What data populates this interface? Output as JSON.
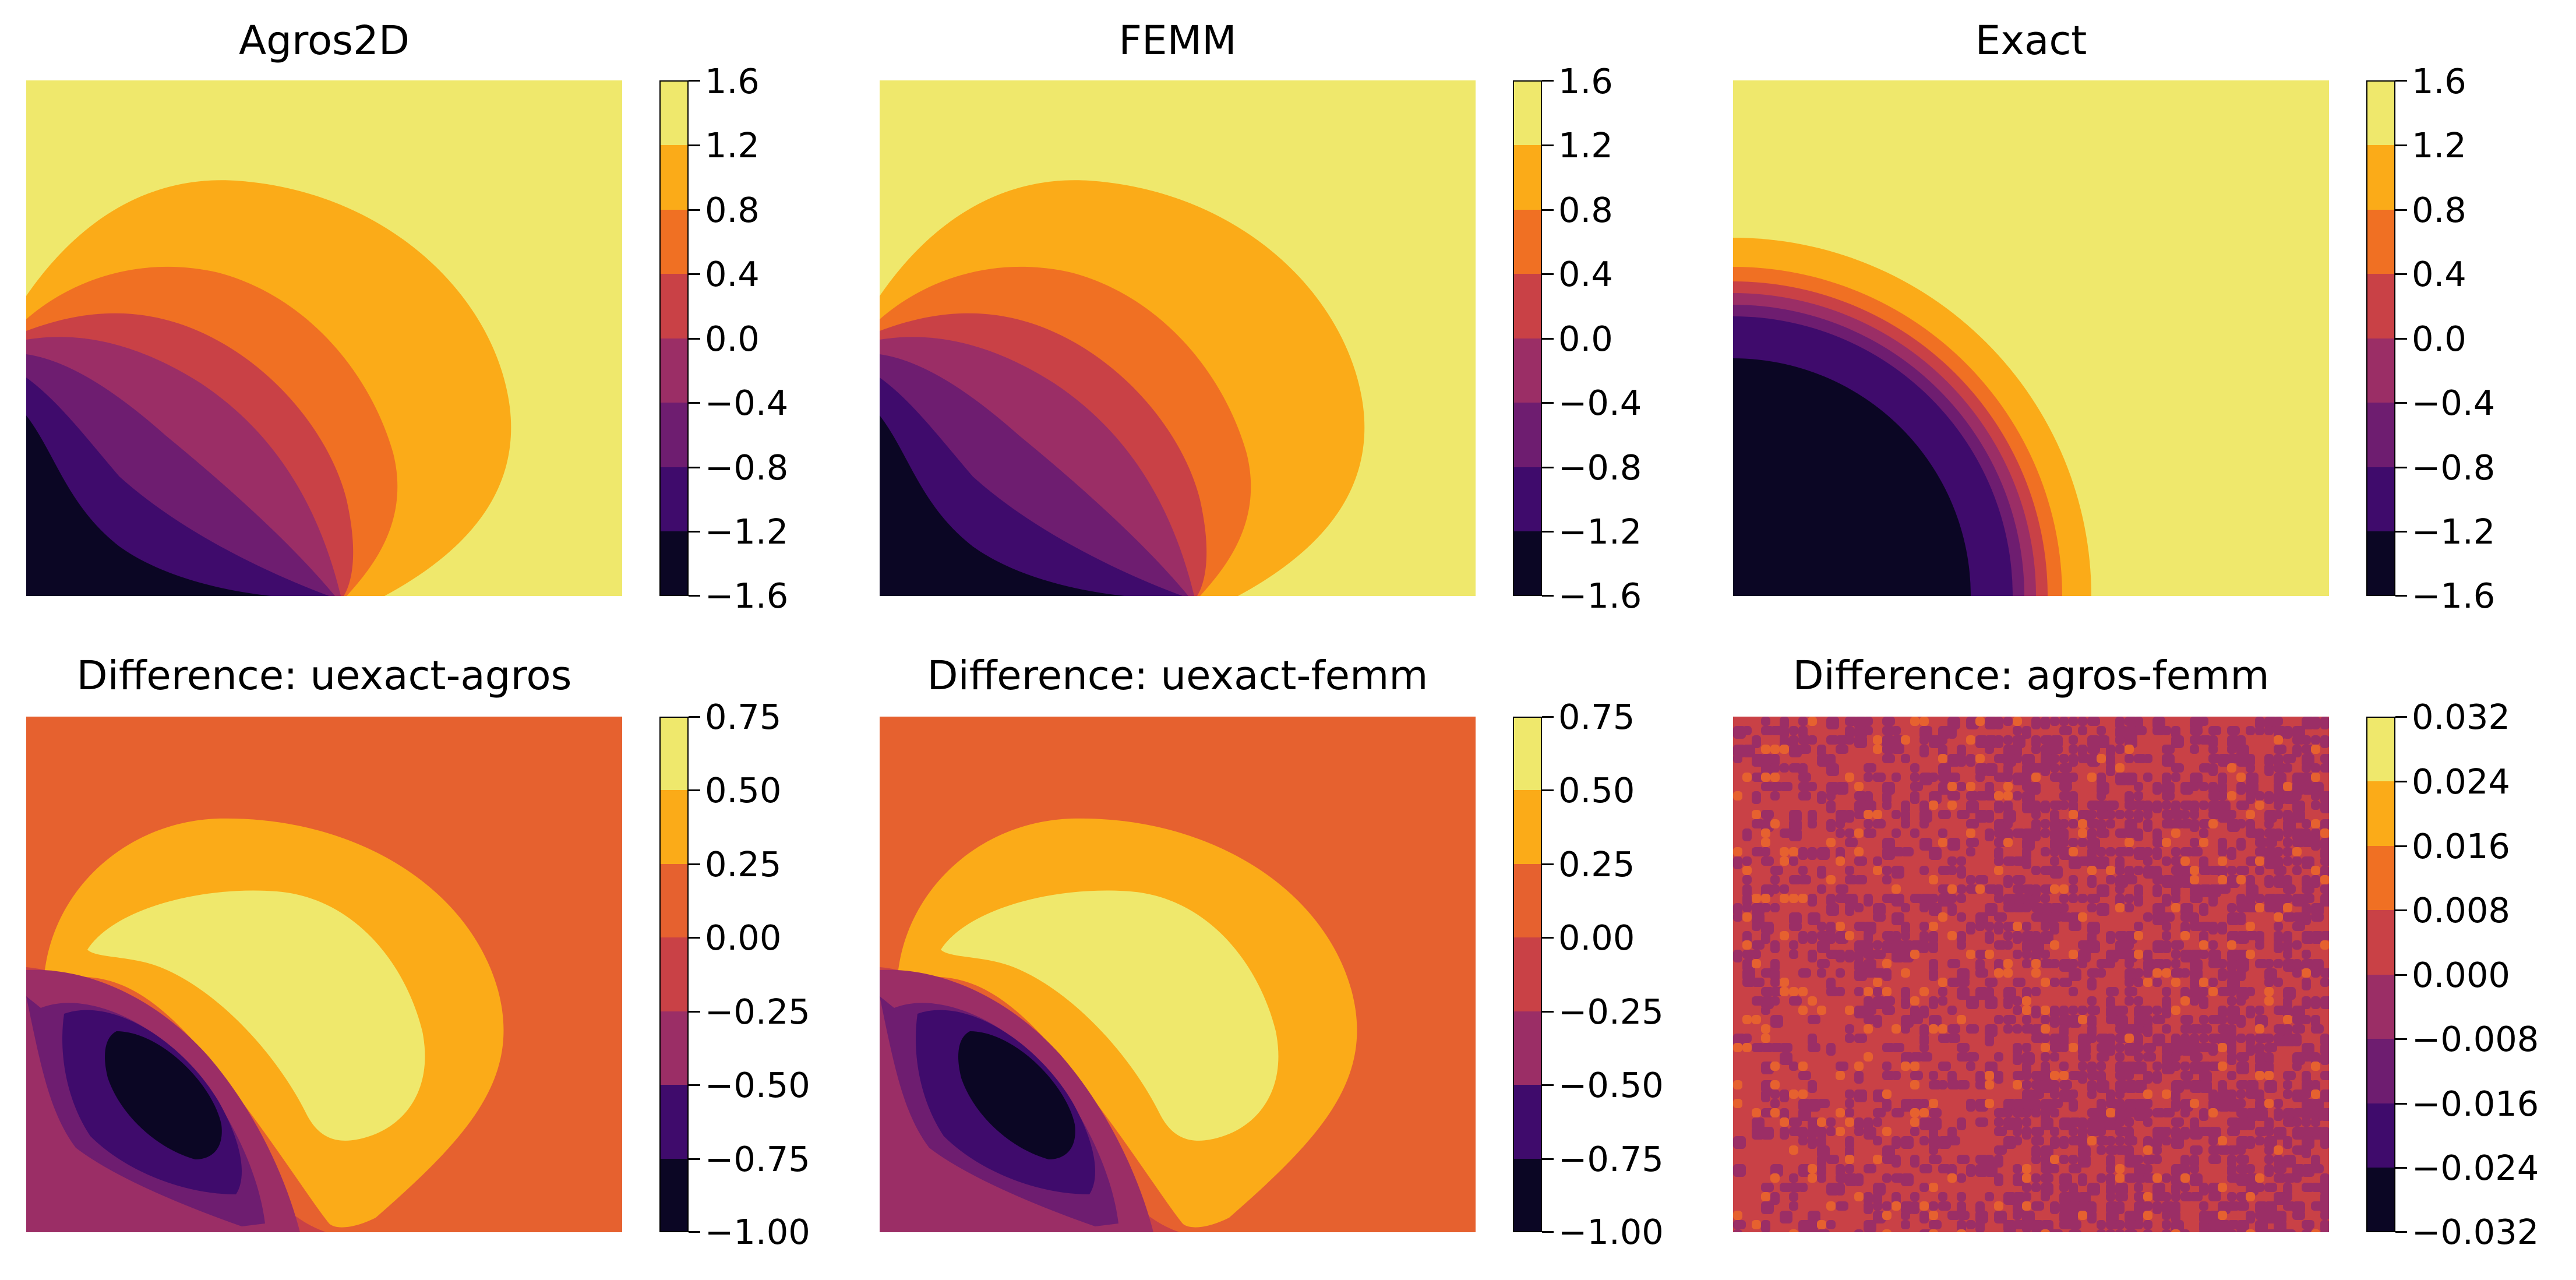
{
  "colors": {
    "c8": [
      "#0b0624",
      "#3f0b6c",
      "#6e1d70",
      "#9b2e66",
      "#c94146",
      "#f07023",
      "#fbab18",
      "#efe86c"
    ],
    "diff_bg": "#e6612f",
    "diff_noise_a": "#9b2e66",
    "diff_noise_b": "#d0463f"
  },
  "panels": [
    {
      "id": "agros2d",
      "title": "Agros2D",
      "colorbar_ticks": [
        "1.6",
        "1.2",
        "0.8",
        "0.4",
        "0.0",
        "−0.4",
        "−0.8",
        "−1.2",
        "−1.6"
      ]
    },
    {
      "id": "femm",
      "title": "FEMM",
      "colorbar_ticks": [
        "1.6",
        "1.2",
        "0.8",
        "0.4",
        "0.0",
        "−0.4",
        "−0.8",
        "−1.2",
        "−1.6"
      ]
    },
    {
      "id": "exact",
      "title": "Exact",
      "colorbar_ticks": [
        "1.6",
        "1.2",
        "0.8",
        "0.4",
        "0.0",
        "−0.4",
        "−0.8",
        "−1.2",
        "−1.6"
      ]
    },
    {
      "id": "diff-uexact-agros",
      "title": "Difference: uexact-agros",
      "colorbar_ticks": [
        "0.75",
        "0.50",
        "0.25",
        "0.00",
        "−0.25",
        "−0.50",
        "−0.75",
        "−1.00"
      ]
    },
    {
      "id": "diff-uexact-femm",
      "title": "Difference: uexact-femm",
      "colorbar_ticks": [
        "0.75",
        "0.50",
        "0.25",
        "0.00",
        "−0.25",
        "−0.50",
        "−0.75",
        "−1.00"
      ]
    },
    {
      "id": "diff-agros-femm",
      "title": "Difference: agros-femm",
      "colorbar_ticks": [
        "0.032",
        "0.024",
        "0.016",
        "0.008",
        "0.000",
        "−0.008",
        "−0.016",
        "−0.024",
        "−0.032"
      ]
    }
  ],
  "chart_data": [
    {
      "type": "heatmap",
      "title": "Agros2D",
      "colorbar": {
        "levels": [
          -1.6,
          -1.2,
          -0.8,
          -0.4,
          0.0,
          0.4,
          0.8,
          1.2,
          1.6
        ]
      }
    },
    {
      "type": "heatmap",
      "title": "FEMM",
      "colorbar": {
        "levels": [
          -1.6,
          -1.2,
          -0.8,
          -0.4,
          0.0,
          0.4,
          0.8,
          1.2,
          1.6
        ]
      }
    },
    {
      "type": "heatmap",
      "title": "Exact",
      "colorbar": {
        "levels": [
          -1.6,
          -1.2,
          -0.8,
          -0.4,
          0.0,
          0.4,
          0.8,
          1.2,
          1.6
        ]
      }
    },
    {
      "type": "heatmap",
      "title": "Difference: uexact-agros",
      "colorbar": {
        "levels": [
          -1.0,
          -0.75,
          -0.5,
          -0.25,
          0.0,
          0.25,
          0.5,
          0.75
        ]
      }
    },
    {
      "type": "heatmap",
      "title": "Difference: uexact-femm",
      "colorbar": {
        "levels": [
          -1.0,
          -0.75,
          -0.5,
          -0.25,
          0.0,
          0.25,
          0.5,
          0.75
        ]
      }
    },
    {
      "type": "heatmap",
      "title": "Difference: agros-femm",
      "colorbar": {
        "levels": [
          -0.032,
          -0.024,
          -0.016,
          -0.008,
          0.0,
          0.008,
          0.016,
          0.024,
          0.032
        ]
      }
    }
  ]
}
